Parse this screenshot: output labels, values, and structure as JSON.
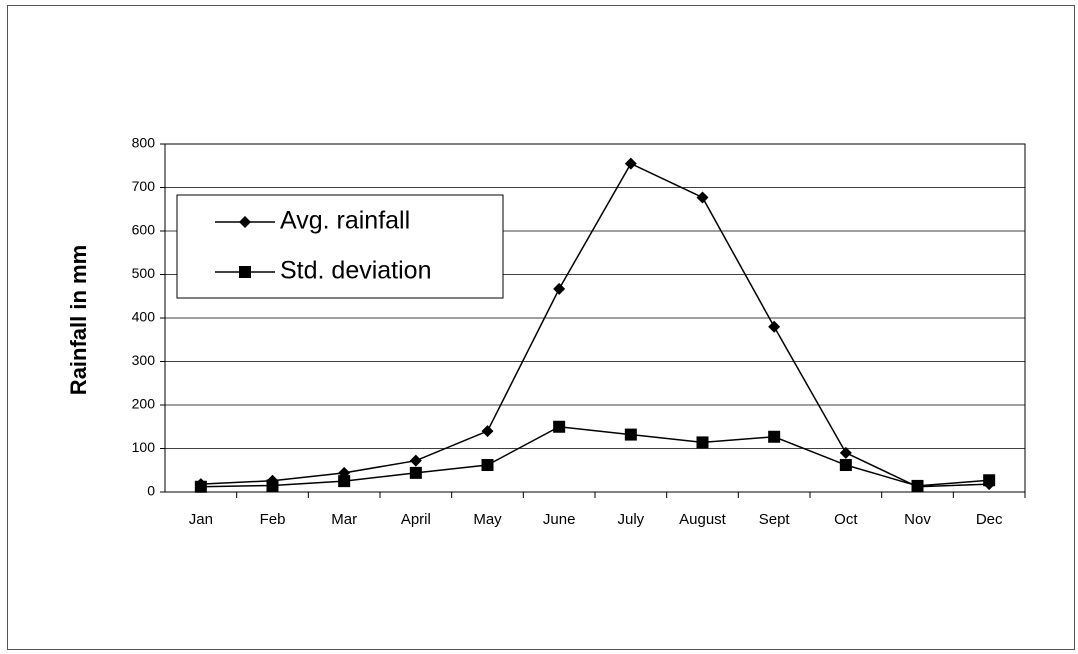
{
  "chart_data": {
    "type": "line",
    "y_label": "Rainfall in mm",
    "categories": [
      "Jan",
      "Feb",
      "Mar",
      "April",
      "May",
      "June",
      "July",
      "August",
      "Sept",
      "Oct",
      "Nov",
      "Dec"
    ],
    "series": [
      {
        "name": "Avg. rainfall",
        "color": "#000000",
        "marker": "diamond",
        "values": [
          18,
          26,
          44,
          72,
          140,
          467,
          755,
          677,
          380,
          90,
          12,
          18
        ]
      },
      {
        "name": "Std. deviation",
        "color": "#000000",
        "marker": "square",
        "values": [
          12,
          15,
          25,
          44,
          62,
          150,
          132,
          114,
          127,
          62,
          14,
          27
        ]
      }
    ],
    "ylim": [
      0,
      800
    ],
    "yticks": [
      0,
      100,
      200,
      300,
      400,
      500,
      600,
      700,
      800
    ],
    "grid": true,
    "legend": "upper left"
  }
}
